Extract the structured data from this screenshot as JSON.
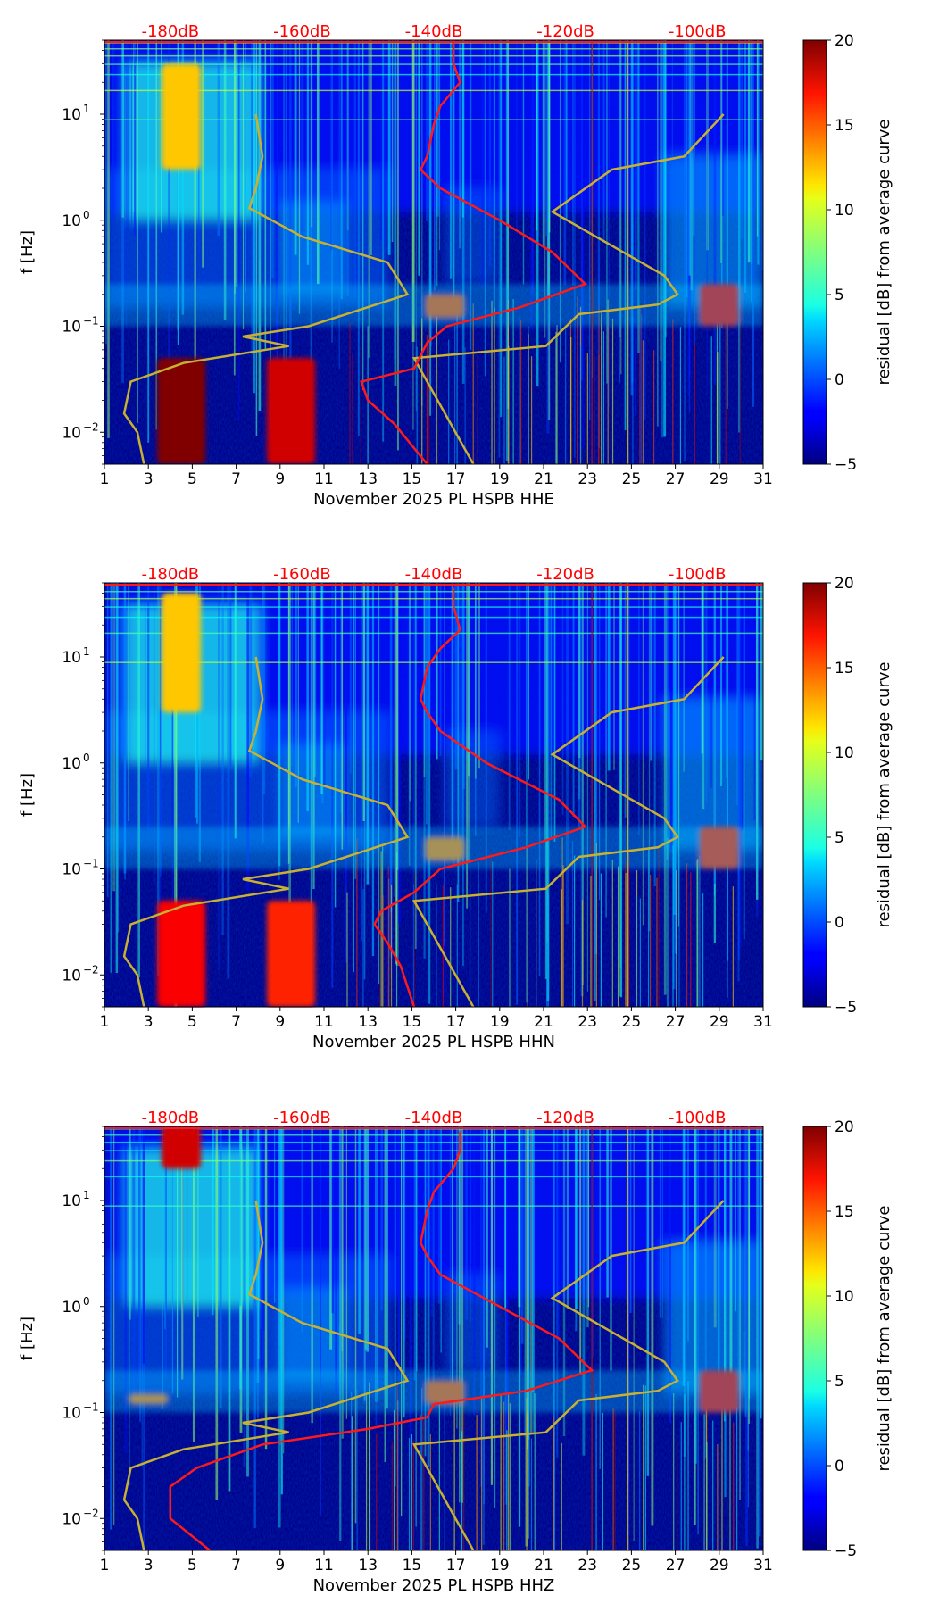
{
  "figure": {
    "colorbar": {
      "label": "residual [dB] from average curve",
      "ticks": [
        "20",
        "15",
        "10",
        "5",
        "0",
        "−5"
      ],
      "range": [
        -5,
        20
      ],
      "colormap": "jet"
    },
    "xticks": [
      "1",
      "3",
      "5",
      "7",
      "9",
      "11",
      "13",
      "15",
      "17",
      "19",
      "21",
      "23",
      "25",
      "27",
      "29",
      "31"
    ],
    "top_db_ticks": [
      "-180dB",
      "-160dB",
      "-140dB",
      "-120dB",
      "-100dB"
    ],
    "yticks": [
      "10",
      "10",
      "10",
      "10"
    ],
    "ytick_exponents": [
      "1",
      "0",
      "−1",
      "−2"
    ],
    "ylabel": "f [Hz]",
    "colors": {
      "average_curve": "#ff1a1a",
      "noise_model": "#c8b032",
      "db_labels": "#ff0000"
    }
  },
  "chart_data": [
    {
      "type": "heatmap",
      "xlabel": "November 2025 PL HSPB  HHE",
      "ylabel": "f [Hz]",
      "x_range": [
        1,
        31
      ],
      "y_range_hz": [
        0.005,
        50
      ],
      "y_scale": "log",
      "color_range_db": [
        -5,
        20
      ],
      "features": [
        {
          "day": 4.5,
          "f_low": 0.005,
          "f_high": 0.05,
          "level_db": 20
        },
        {
          "day": 4.5,
          "f_low": 3,
          "f_high": 30,
          "level_db": 12
        },
        {
          "day": 9.5,
          "f_low": 0.005,
          "f_high": 0.05,
          "level_db": 18
        },
        {
          "day": 16.5,
          "f_low": 0.12,
          "f_high": 0.2,
          "level_db": 15
        },
        {
          "day": 29,
          "f_low": 0.1,
          "f_high": 0.25,
          "level_db": 17
        }
      ],
      "average_curve_db": [
        [
          -137,
          50
        ],
        [
          -137,
          30
        ],
        [
          -136,
          20
        ],
        [
          -139,
          12
        ],
        [
          -140,
          8
        ],
        [
          -141,
          4
        ],
        [
          -142,
          3
        ],
        [
          -139,
          2
        ],
        [
          -130,
          1
        ],
        [
          -122,
          0.5
        ],
        [
          -117,
          0.25
        ],
        [
          -127,
          0.15
        ],
        [
          -138,
          0.1
        ],
        [
          -141,
          0.07
        ],
        [
          -143,
          0.04
        ],
        [
          -151,
          0.03
        ],
        [
          -150,
          0.02
        ],
        [
          -146,
          0.012
        ],
        [
          -141,
          0.005
        ]
      ],
      "noise_model_low_db": [
        [
          -167,
          10
        ],
        [
          -166,
          4
        ],
        [
          -167,
          2
        ],
        [
          -168,
          1.3
        ],
        [
          -160,
          0.7
        ],
        [
          -147,
          0.4
        ],
        [
          -144,
          0.2
        ],
        [
          -159,
          0.1
        ],
        [
          -169,
          0.08
        ],
        [
          -162,
          0.065
        ],
        [
          -178,
          0.045
        ],
        [
          -186,
          0.03
        ],
        [
          -187,
          0.015
        ],
        [
          -185,
          0.01
        ],
        [
          -184,
          0.005
        ]
      ],
      "noise_model_high_db": [
        [
          -96,
          10
        ],
        [
          -102,
          4
        ],
        [
          -113,
          3
        ],
        [
          -122,
          1.2
        ],
        [
          -105,
          0.3
        ],
        [
          -103,
          0.2
        ],
        [
          -106,
          0.16
        ],
        [
          -118,
          0.13
        ],
        [
          -123,
          0.065
        ],
        [
          -143,
          0.05
        ],
        [
          -134,
          0.005
        ]
      ]
    },
    {
      "type": "heatmap",
      "xlabel": "November 2025 PL HSPB  HHN",
      "ylabel": "f [Hz]",
      "x_range": [
        1,
        31
      ],
      "y_range_hz": [
        0.005,
        50
      ],
      "y_scale": "log",
      "color_range_db": [
        -5,
        20
      ],
      "features": [
        {
          "day": 4.5,
          "f_low": 0.005,
          "f_high": 0.05,
          "level_db": 17
        },
        {
          "day": 4.5,
          "f_low": 3,
          "f_high": 40,
          "level_db": 12
        },
        {
          "day": 9.5,
          "f_low": 0.005,
          "f_high": 0.05,
          "level_db": 16
        },
        {
          "day": 16.5,
          "f_low": 0.12,
          "f_high": 0.2,
          "level_db": 14
        },
        {
          "day": 29,
          "f_low": 0.1,
          "f_high": 0.25,
          "level_db": 16
        }
      ],
      "average_curve_db": [
        [
          -137,
          45
        ],
        [
          -137,
          30
        ],
        [
          -136,
          18
        ],
        [
          -139,
          12
        ],
        [
          -141,
          8
        ],
        [
          -142,
          4
        ],
        [
          -141,
          3
        ],
        [
          -139,
          2
        ],
        [
          -132,
          1
        ],
        [
          -121,
          0.45
        ],
        [
          -117,
          0.25
        ],
        [
          -126,
          0.16
        ],
        [
          -139,
          0.1
        ],
        [
          -143,
          0.06
        ],
        [
          -148,
          0.04
        ],
        [
          -149,
          0.03
        ],
        [
          -147,
          0.02
        ],
        [
          -145,
          0.012
        ],
        [
          -143,
          0.005
        ]
      ],
      "noise_model_low_db": [
        [
          -167,
          10
        ],
        [
          -166,
          4
        ],
        [
          -167,
          2
        ],
        [
          -168,
          1.3
        ],
        [
          -160,
          0.7
        ],
        [
          -147,
          0.4
        ],
        [
          -144,
          0.2
        ],
        [
          -159,
          0.1
        ],
        [
          -169,
          0.08
        ],
        [
          -162,
          0.065
        ],
        [
          -178,
          0.045
        ],
        [
          -186,
          0.03
        ],
        [
          -187,
          0.015
        ],
        [
          -185,
          0.01
        ],
        [
          -184,
          0.005
        ]
      ],
      "noise_model_high_db": [
        [
          -96,
          10
        ],
        [
          -102,
          4
        ],
        [
          -113,
          3
        ],
        [
          -122,
          1.2
        ],
        [
          -105,
          0.3
        ],
        [
          -103,
          0.2
        ],
        [
          -106,
          0.16
        ],
        [
          -118,
          0.13
        ],
        [
          -123,
          0.065
        ],
        [
          -143,
          0.05
        ],
        [
          -134,
          0.005
        ]
      ]
    },
    {
      "type": "heatmap",
      "xlabel": "November 2025 PL HSPB  HHZ",
      "ylabel": "f [Hz]",
      "x_range": [
        1,
        31
      ],
      "y_range_hz": [
        0.005,
        50
      ],
      "y_scale": "log",
      "color_range_db": [
        -5,
        20
      ],
      "features": [
        {
          "day": 4.5,
          "f_low": 20,
          "f_high": 50,
          "level_db": 18
        },
        {
          "day": 16.5,
          "f_low": 0.12,
          "f_high": 0.2,
          "level_db": 15
        },
        {
          "day": 29,
          "f_low": 0.1,
          "f_high": 0.25,
          "level_db": 17
        },
        {
          "day": 3,
          "f_low": 0.12,
          "f_high": 0.15,
          "level_db": 14
        }
      ],
      "average_curve_db": [
        [
          -136,
          45
        ],
        [
          -136,
          30
        ],
        [
          -137,
          20
        ],
        [
          -140,
          12
        ],
        [
          -141,
          8
        ],
        [
          -142,
          4
        ],
        [
          -141,
          3
        ],
        [
          -139,
          2
        ],
        [
          -130,
          1
        ],
        [
          -121,
          0.5
        ],
        [
          -116,
          0.25
        ],
        [
          -126,
          0.16
        ],
        [
          -140,
          0.12
        ],
        [
          -141,
          0.09
        ],
        [
          -150,
          0.07
        ],
        [
          -166,
          0.05
        ],
        [
          -176,
          0.03
        ],
        [
          -180,
          0.02
        ],
        [
          -180,
          0.01
        ],
        [
          -174,
          0.005
        ]
      ],
      "noise_model_low_db": [
        [
          -167,
          10
        ],
        [
          -166,
          4
        ],
        [
          -167,
          2
        ],
        [
          -168,
          1.3
        ],
        [
          -160,
          0.7
        ],
        [
          -147,
          0.4
        ],
        [
          -144,
          0.2
        ],
        [
          -159,
          0.1
        ],
        [
          -169,
          0.08
        ],
        [
          -162,
          0.065
        ],
        [
          -178,
          0.045
        ],
        [
          -186,
          0.03
        ],
        [
          -187,
          0.015
        ],
        [
          -185,
          0.01
        ],
        [
          -184,
          0.005
        ]
      ],
      "noise_model_high_db": [
        [
          -96,
          10
        ],
        [
          -102,
          4
        ],
        [
          -113,
          3
        ],
        [
          -122,
          1.2
        ],
        [
          -105,
          0.3
        ],
        [
          -103,
          0.2
        ],
        [
          -106,
          0.16
        ],
        [
          -118,
          0.13
        ],
        [
          -123,
          0.065
        ],
        [
          -143,
          0.05
        ],
        [
          -134,
          0.005
        ]
      ]
    }
  ]
}
